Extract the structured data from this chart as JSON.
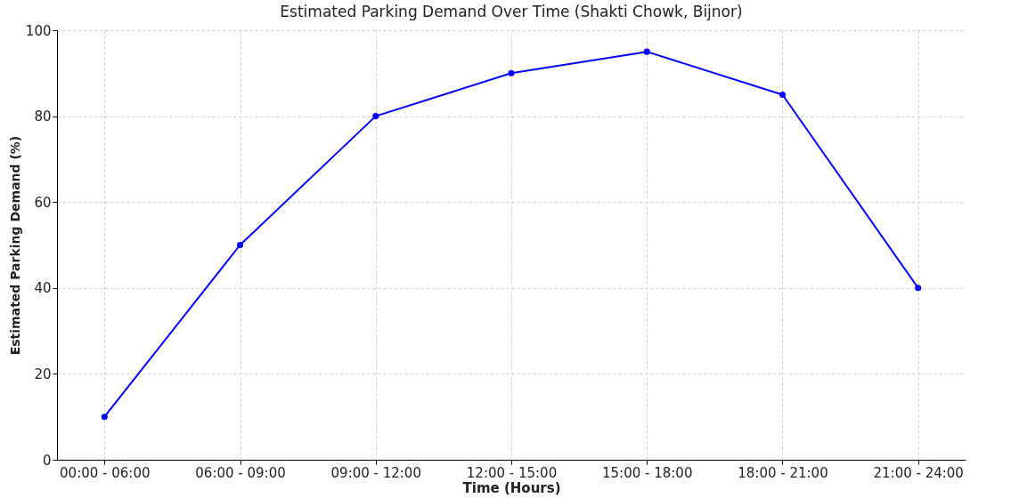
{
  "chart_data": {
    "type": "line",
    "title": "Estimated Parking Demand Over Time (Shakti Chowk, Bijnor)",
    "xlabel": "Time (Hours)",
    "ylabel": "Estimated Parking Demand (%)",
    "categories": [
      "00:00 - 06:00",
      "06:00 - 09:00",
      "09:00 - 12:00",
      "12:00 - 15:00",
      "15:00 - 18:00",
      "18:00 - 21:00",
      "21:00 - 24:00"
    ],
    "series": [
      {
        "color": "#0000ff",
        "values": [
          10,
          50,
          80,
          90,
          95,
          85,
          40
        ]
      }
    ],
    "ylim": [
      0,
      100
    ],
    "yticks": [
      0,
      20,
      40,
      60,
      80,
      100
    ],
    "grid": true,
    "marker": "circle",
    "line_style": "solid",
    "legend": false
  }
}
